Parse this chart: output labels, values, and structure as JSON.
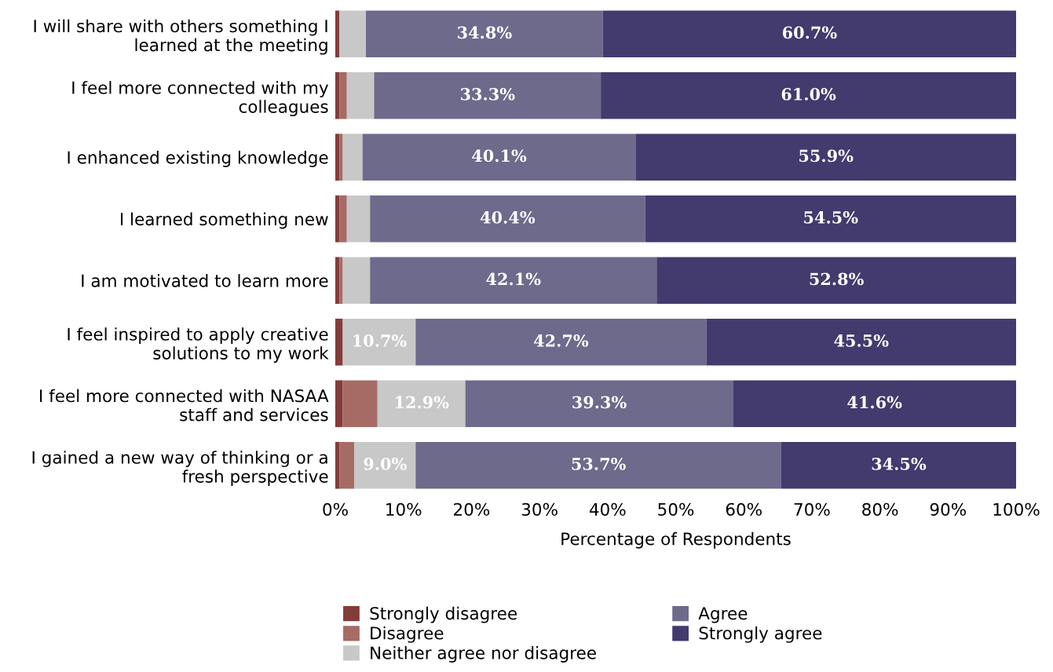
{
  "chart_data": {
    "type": "bar",
    "orientation": "horizontal",
    "stacked": true,
    "xlabel": "Percentage of Respondents",
    "categories": [
      "I will share with others something I\nlearned at the meeting",
      "I feel more connected with my\ncolleagues",
      "I enhanced existing knowledge",
      "I learned something new",
      "I am motivated to learn more",
      "I feel inspired to apply creative\nsolutions to my work",
      "I feel more connected with NASAA\nstaff and services",
      "I gained a new way of thinking or a\nfresh perspective"
    ],
    "series": [
      {
        "name": "Strongly disagree",
        "color": "#843c39",
        "values": [
          0.6,
          0.6,
          0.6,
          0.6,
          0.6,
          1.1,
          1.1,
          0.6
        ],
        "value_labels": [
          null,
          null,
          null,
          null,
          null,
          null,
          null,
          null
        ]
      },
      {
        "name": "Disagree",
        "color": "#a56b64",
        "values": [
          0,
          1.1,
          0.5,
          1.1,
          0.5,
          0,
          5.1,
          2.2
        ],
        "value_labels": [
          null,
          null,
          null,
          null,
          null,
          null,
          null,
          null
        ]
      },
      {
        "name": "Neither agree nor disagree",
        "color": "#c8c8c8",
        "values": [
          3.9,
          4.0,
          2.9,
          3.4,
          4.0,
          10.7,
          12.9,
          9.0
        ],
        "value_labels": [
          null,
          null,
          null,
          null,
          null,
          "10.7%",
          "12.9%",
          "9.0%"
        ]
      },
      {
        "name": "Agree",
        "color": "#6e6a8c",
        "values": [
          34.8,
          33.3,
          40.1,
          40.4,
          42.1,
          42.7,
          39.3,
          53.7
        ],
        "value_labels": [
          "34.8%",
          "33.3%",
          "40.1%",
          "40.4%",
          "42.1%",
          "42.7%",
          "39.3%",
          "53.7%"
        ]
      },
      {
        "name": "Strongly agree",
        "color": "#433a6e",
        "values": [
          60.7,
          61.0,
          55.9,
          54.5,
          52.8,
          45.5,
          41.6,
          34.5
        ],
        "value_labels": [
          "60.7%",
          "61.0%",
          "55.9%",
          "54.5%",
          "52.8%",
          "45.5%",
          "41.6%",
          "34.5%"
        ]
      }
    ],
    "xlim": [
      0,
      100
    ],
    "xticks": [
      {
        "value": 0,
        "label": "0%"
      },
      {
        "value": 10,
        "label": "10%"
      },
      {
        "value": 20,
        "label": "20%"
      },
      {
        "value": 30,
        "label": "30%"
      },
      {
        "value": 40,
        "label": "40%"
      },
      {
        "value": 50,
        "label": "50%"
      },
      {
        "value": 60,
        "label": "60%"
      },
      {
        "value": 70,
        "label": "70%"
      },
      {
        "value": 80,
        "label": "80%"
      },
      {
        "value": 90,
        "label": "90%"
      },
      {
        "value": 100,
        "label": "100%"
      }
    ],
    "grid": false,
    "legend": "bottom"
  }
}
